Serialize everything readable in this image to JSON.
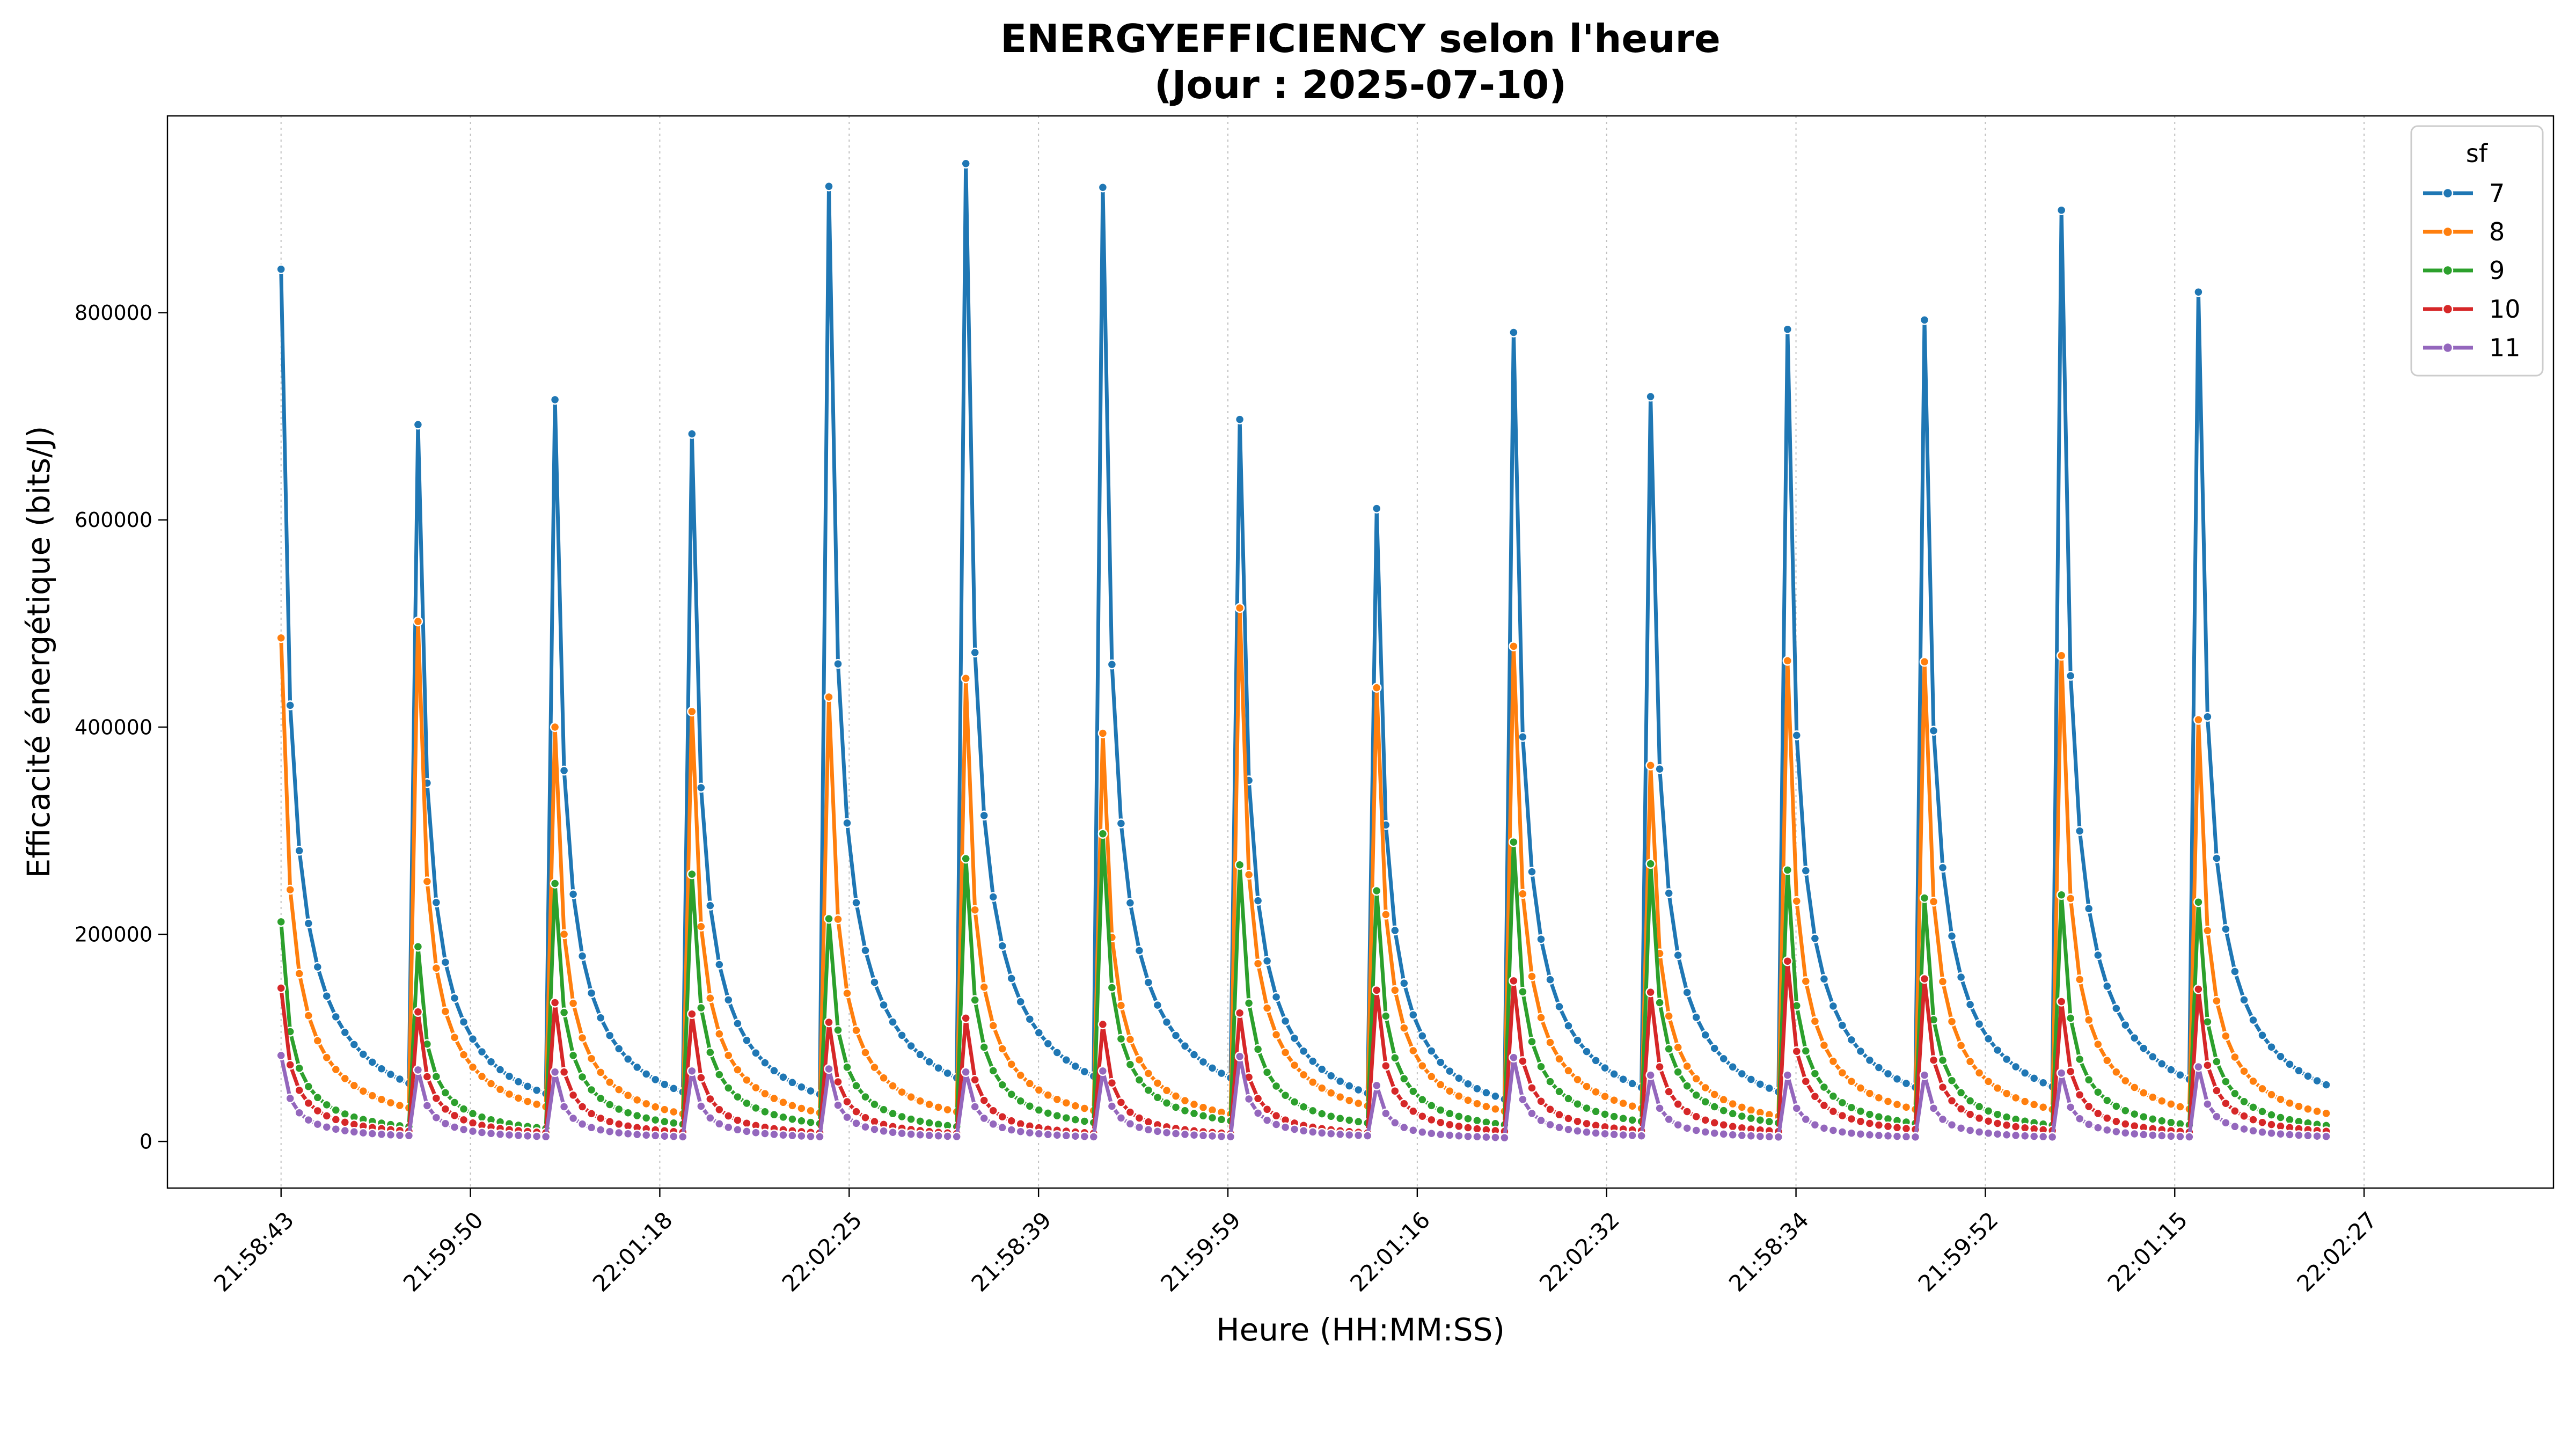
{
  "chart_data": {
    "type": "line",
    "title_line1": "ENERGYEFFICIENCY selon l'heure",
    "title_line2": "(Jour : 2025-07-10)",
    "xlabel": "Heure (HH:MM:SS)",
    "ylabel": "Efficacité énergétique (bits/J)",
    "x_tick_labels": [
      "21:58:43",
      "21:59:50",
      "22:01:18",
      "22:02:25",
      "21:58:39",
      "21:59:59",
      "22:01:16",
      "22:02:32",
      "21:58:34",
      "21:59:52",
      "22:01:15",
      "22:02:27"
    ],
    "y_ticks": [
      0,
      200000,
      400000,
      600000,
      800000
    ],
    "y_tick_labels": [
      "0",
      "200000",
      "400000",
      "600000",
      "800000"
    ],
    "ylim": [
      -45000,
      990000
    ],
    "x_index_range": [
      -6,
      120
    ],
    "x_tick_step": 10,
    "points_per_cycle": 15,
    "cycles": 15,
    "grid_x": true,
    "grid_y": false,
    "legend": {
      "title": "sf",
      "position": "top-right",
      "labels": [
        "7",
        "8",
        "9",
        "10",
        "11"
      ]
    },
    "series": [
      {
        "name": "7",
        "color": "#1f77b4",
        "peaks": [
          842000,
          692000,
          716000,
          683000,
          922000,
          944000,
          921000,
          697000,
          611000,
          781000,
          719000,
          784000,
          793000,
          899000,
          820000
        ]
      },
      {
        "name": "8",
        "color": "#ff7f0e",
        "peaks": [
          486000,
          502000,
          400000,
          415000,
          429000,
          447000,
          394000,
          515000,
          438000,
          478000,
          363000,
          464000,
          463000,
          469000,
          407000
        ]
      },
      {
        "name": "9",
        "color": "#2ca02c",
        "peaks": [
          212000,
          188000,
          249000,
          258000,
          215000,
          273000,
          297000,
          267000,
          242000,
          289000,
          268000,
          262000,
          235000,
          238000,
          231000
        ]
      },
      {
        "name": "10",
        "color": "#d62728",
        "peaks": [
          148000,
          125000,
          134000,
          123000,
          115000,
          119000,
          113000,
          124000,
          146000,
          155000,
          144000,
          174000,
          157000,
          135000,
          147000
        ]
      },
      {
        "name": "11",
        "color": "#9467bd",
        "peaks": [
          83000,
          69000,
          67000,
          68000,
          70000,
          67000,
          68000,
          82000,
          54000,
          81000,
          64000,
          64000,
          64000,
          66000,
          72000
        ]
      }
    ]
  }
}
